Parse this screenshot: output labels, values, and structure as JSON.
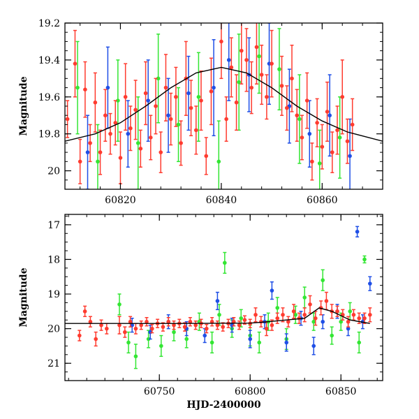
{
  "figure": {
    "xlabel_shared": "HJD-2400000"
  },
  "chart_data": [
    {
      "type": "scatter",
      "panel": "top",
      "title": "",
      "xlabel": "",
      "ylabel": "Magnitude",
      "xlim": [
        60809,
        60872
      ],
      "ylim": [
        20.1,
        19.2
      ],
      "y_inverted": true,
      "xticks": [
        60820,
        60840,
        60860
      ],
      "yticks": [
        19.2,
        19.4,
        19.6,
        19.8,
        20
      ],
      "ytick_labels": [
        "19.2",
        "19.4",
        "19.6",
        "19.8",
        "20"
      ],
      "grid": false,
      "legend": "none",
      "colors": {
        "red": "#ff3b2f",
        "green": "#33e633",
        "blue": "#1f4fe6",
        "model": "#000000"
      },
      "model_curve": {
        "x": [
          60809,
          60815,
          60820,
          60825,
          60830,
          60835,
          60840,
          60845,
          60850,
          60855,
          60860,
          60865,
          60872
        ],
        "y": [
          19.84,
          19.8,
          19.74,
          19.65,
          19.55,
          19.47,
          19.44,
          19.47,
          19.55,
          19.65,
          19.73,
          19.79,
          19.84
        ]
      },
      "series": [
        {
          "color": "red",
          "x": [
            60809.5,
            60811.0,
            60812.0,
            60813.0,
            60814.0,
            60815.0,
            60816.0,
            60817.0,
            60818.0,
            60819.0,
            60820.0,
            60821.0,
            60822.0,
            60823.0,
            60824.0,
            60825.0,
            60826.0,
            60827.0,
            60828.0,
            60829.0,
            60830.0,
            60831.0,
            60832.0,
            60833.0,
            60834.0,
            60835.0,
            60836.0,
            60837.0,
            60838.0,
            60840.0,
            60841.0,
            60842.0,
            60843.0,
            60844.0,
            60845.0,
            60846.0,
            60847.0,
            60848.0,
            60849.0,
            60850.0,
            60852.0,
            60853.0,
            60854.0,
            60855.0,
            60856.0,
            60857.0,
            60858.0,
            60859.0,
            60860.0,
            60861.0,
            60862.0,
            60863.0,
            60864.0,
            60865.0,
            60866.0
          ],
          "y": [
            19.72,
            19.42,
            19.95,
            19.56,
            19.85,
            19.63,
            19.9,
            19.7,
            19.8,
            19.74,
            19.93,
            19.6,
            19.77,
            19.67,
            19.88,
            19.58,
            19.82,
            19.65,
            19.9,
            19.55,
            19.72,
            19.6,
            19.85,
            19.5,
            19.66,
            19.78,
            19.62,
            19.92,
            19.57,
            19.3,
            19.72,
            19.44,
            19.63,
            19.35,
            19.4,
            19.55,
            19.33,
            19.48,
            19.6,
            19.42,
            19.54,
            19.66,
            19.5,
            19.7,
            19.82,
            19.62,
            19.95,
            19.74,
            19.87,
            19.68,
            19.9,
            19.78,
            19.6,
            19.84,
            19.75
          ],
          "err": [
            0.1,
            0.18,
            0.12,
            0.15,
            0.1,
            0.16,
            0.12,
            0.14,
            0.11,
            0.12,
            0.14,
            0.18,
            0.12,
            0.16,
            0.1,
            0.17,
            0.12,
            0.15,
            0.11,
            0.18,
            0.14,
            0.16,
            0.12,
            0.2,
            0.15,
            0.13,
            0.16,
            0.1,
            0.18,
            0.2,
            0.12,
            0.16,
            0.15,
            0.18,
            0.17,
            0.14,
            0.2,
            0.16,
            0.12,
            0.18,
            0.16,
            0.12,
            0.18,
            0.14,
            0.12,
            0.15,
            0.1,
            0.13,
            0.12,
            0.16,
            0.11,
            0.13,
            0.2,
            0.12,
            0.14
          ]
        },
        {
          "color": "green",
          "x": [
            60811.5,
            60815.5,
            60819.5,
            60823.5,
            60827.5,
            60831.5,
            60835.5,
            60839.5,
            60843.5,
            60847.5,
            60851.5,
            60855.5,
            60859.5,
            60863.5
          ],
          "y": [
            19.55,
            19.95,
            19.62,
            19.85,
            19.5,
            19.75,
            19.6,
            19.95,
            19.52,
            19.38,
            19.45,
            19.72,
            19.96,
            19.82
          ],
          "err": [
            0.25,
            0.2,
            0.22,
            0.25,
            0.24,
            0.2,
            0.24,
            0.22,
            0.26,
            0.2,
            0.22,
            0.24,
            0.18,
            0.22
          ]
        },
        {
          "color": "blue",
          "x": [
            60813.5,
            60817.5,
            60821.5,
            60825.5,
            60829.5,
            60833.5,
            60838.5,
            60841.5,
            60845.5,
            60849.5,
            60853.5,
            60857.5,
            60861.5,
            60865.5
          ],
          "y": [
            19.9,
            19.55,
            19.8,
            19.62,
            19.7,
            19.58,
            19.55,
            19.4,
            19.48,
            19.42,
            19.65,
            19.8,
            19.7,
            19.92
          ],
          "err": [
            0.2,
            0.22,
            0.18,
            0.22,
            0.2,
            0.2,
            0.26,
            0.22,
            0.2,
            0.22,
            0.2,
            0.18,
            0.22,
            0.2
          ]
        }
      ]
    },
    {
      "type": "scatter",
      "panel": "bottom",
      "title": "",
      "xlabel": "HJD-2400000",
      "ylabel": "Magnitude",
      "xlim": [
        60698,
        60873
      ],
      "ylim": [
        21.5,
        16.7
      ],
      "y_inverted": true,
      "xticks": [
        60750,
        60800,
        60850
      ],
      "yticks": [
        17,
        18,
        19,
        20,
        21
      ],
      "ytick_labels": [
        "17",
        "18",
        "19",
        "20",
        "21"
      ],
      "grid": false,
      "legend": "none",
      "colors": {
        "red": "#ff3b2f",
        "green": "#33e633",
        "blue": "#1f4fe6",
        "model": "#000000"
      },
      "model_curve": {
        "x": [
          60698,
          60725,
          60760,
          60800,
          60810,
          60820,
          60830,
          60838,
          60845,
          60855,
          60866
        ],
        "y": [
          19.85,
          19.85,
          19.85,
          19.84,
          19.8,
          19.75,
          19.7,
          19.4,
          19.5,
          19.75,
          19.85
        ]
      },
      "series": [
        {
          "color": "red",
          "x": [
            60706,
            60709,
            60712,
            60715,
            60718,
            60721,
            60728,
            60731,
            60734,
            60737,
            60740,
            60743,
            60746,
            60749,
            60752,
            60755,
            60758,
            60761,
            60764,
            60767,
            60770,
            60773,
            60776,
            60779,
            60782,
            60785,
            60788,
            60791,
            60794,
            60797,
            60800,
            60803,
            60806,
            60809,
            60812,
            60815,
            60818,
            60821,
            60824,
            60827,
            60830,
            60833,
            60836,
            60839,
            60842,
            60845,
            60848,
            60851,
            60854,
            60857,
            60860,
            60863,
            60866
          ],
          "y": [
            20.2,
            19.5,
            19.8,
            20.3,
            19.9,
            20.0,
            19.9,
            20.1,
            19.8,
            20.0,
            19.9,
            19.8,
            20.0,
            19.85,
            19.95,
            19.8,
            19.9,
            19.85,
            19.95,
            19.8,
            19.9,
            19.85,
            20.0,
            19.8,
            19.9,
            19.95,
            19.85,
            19.8,
            19.9,
            19.75,
            19.85,
            19.6,
            19.8,
            20.0,
            19.9,
            19.7,
            19.6,
            19.8,
            19.5,
            19.7,
            19.6,
            19.3,
            19.7,
            19.4,
            19.2,
            19.5,
            19.5,
            19.6,
            19.8,
            19.6,
            19.7,
            19.7,
            19.6
          ],
          "err": [
            0.15,
            0.15,
            0.15,
            0.2,
            0.15,
            0.15,
            0.25,
            0.15,
            0.15,
            0.15,
            0.12,
            0.12,
            0.12,
            0.12,
            0.12,
            0.12,
            0.12,
            0.12,
            0.12,
            0.12,
            0.12,
            0.12,
            0.12,
            0.12,
            0.12,
            0.12,
            0.12,
            0.12,
            0.12,
            0.12,
            0.12,
            0.2,
            0.15,
            0.2,
            0.15,
            0.15,
            0.2,
            0.15,
            0.2,
            0.15,
            0.2,
            0.25,
            0.2,
            0.2,
            0.25,
            0.2,
            0.15,
            0.15,
            0.15,
            0.15,
            0.15,
            0.15,
            0.2
          ]
        },
        {
          "color": "green",
          "x": [
            60728,
            60733,
            60737,
            60744,
            60751,
            60758,
            60765,
            60772,
            60779,
            60783,
            60786,
            60790,
            60795,
            60800,
            60805,
            60810,
            60815,
            60820,
            60825,
            60830,
            60835,
            60840,
            60845,
            60850,
            60855,
            60860,
            60863
          ],
          "y": [
            19.3,
            20.4,
            20.8,
            20.3,
            20.5,
            20.1,
            20.3,
            19.8,
            20.4,
            19.6,
            18.1,
            20.0,
            19.7,
            20.2,
            20.4,
            19.8,
            19.4,
            20.3,
            19.6,
            19.1,
            19.8,
            18.6,
            20.2,
            19.8,
            19.5,
            20.4,
            18.0
          ],
          "err": [
            0.3,
            0.3,
            0.35,
            0.25,
            0.3,
            0.25,
            0.25,
            0.25,
            0.3,
            0.3,
            0.3,
            0.25,
            0.25,
            0.3,
            0.3,
            0.25,
            0.3,
            0.3,
            0.25,
            0.3,
            0.25,
            0.3,
            0.25,
            0.25,
            0.25,
            0.3,
            0.1
          ]
        },
        {
          "color": "blue",
          "x": [
            60735,
            60745,
            60755,
            60765,
            60775,
            60782,
            60790,
            60800,
            60808,
            60812,
            60820,
            60828,
            60835,
            60840,
            60848,
            60854,
            60859,
            60862,
            60866
          ],
          "y": [
            19.9,
            20.1,
            19.8,
            20.0,
            20.2,
            19.2,
            19.9,
            20.3,
            19.8,
            18.9,
            20.4,
            19.7,
            20.5,
            19.8,
            19.5,
            20.0,
            17.2,
            19.8,
            18.7
          ],
          "err": [
            0.2,
            0.2,
            0.2,
            0.2,
            0.2,
            0.25,
            0.2,
            0.25,
            0.2,
            0.25,
            0.25,
            0.2,
            0.25,
            0.2,
            0.2,
            0.2,
            0.15,
            0.2,
            0.2
          ]
        }
      ]
    }
  ]
}
